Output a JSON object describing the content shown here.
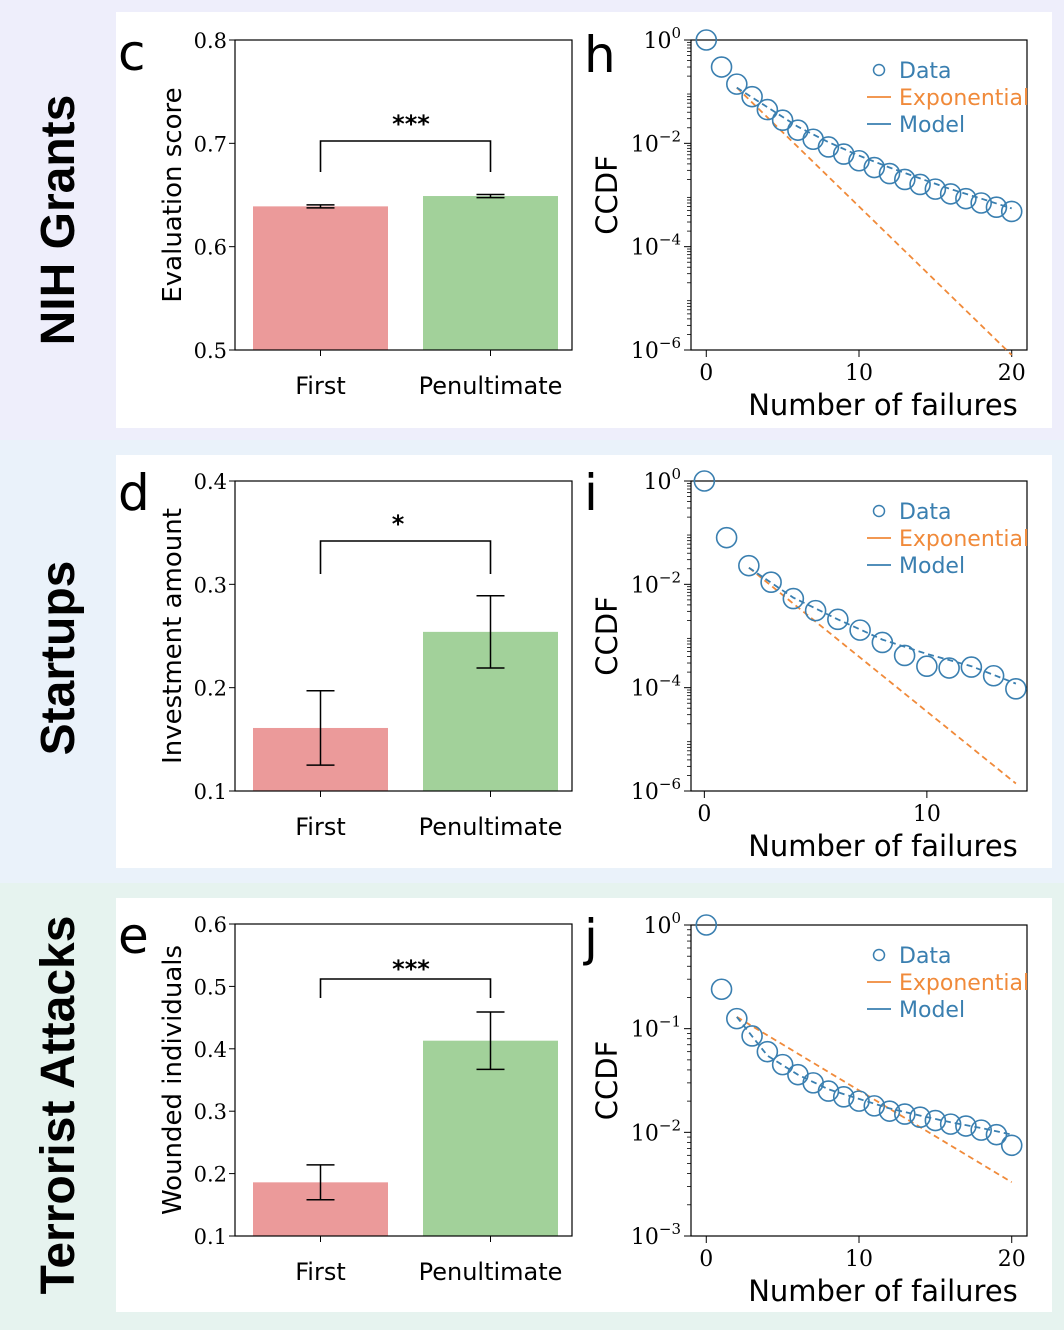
{
  "rows": [
    {
      "label": "NIH Grants",
      "bg": "#eeeefb"
    },
    {
      "label": "Startups",
      "bg": "#eaf2fa"
    },
    {
      "label": "Terrorist Attacks",
      "bg": "#e6f3ef"
    }
  ],
  "colors": {
    "first_bar": "#eb9a9a",
    "penultimate_bar": "#a2d19a",
    "data_marker": "#3a7fb0",
    "exponential_line": "#f08a3a",
    "model_line": "#3a7fb0"
  },
  "chart_data": [
    {
      "panel": "c",
      "type": "bar",
      "categories": [
        "First",
        "Penultimate"
      ],
      "values": [
        0.639,
        0.649
      ],
      "errors": [
        0.0015,
        0.0015
      ],
      "ylabel": "Evaluation score",
      "ylim": [
        0.5,
        0.8
      ],
      "yticks": [
        "0.5",
        "0.6",
        "0.7",
        "0.8"
      ],
      "significance": "***"
    },
    {
      "panel": "h",
      "type": "scatter",
      "xlabel": "Number of failures",
      "ylabel": "CCDF",
      "log_y": true,
      "xlim": [
        -1,
        21
      ],
      "ylim_exp": [
        -6,
        0
      ],
      "xticks": [
        0,
        10,
        20
      ],
      "yticks_exp": [
        0,
        -2,
        -4,
        -6
      ],
      "legend": [
        "Data",
        "Exponential",
        "Model"
      ],
      "legend_position": "top-right",
      "series": [
        {
          "name": "Data",
          "kind": "markers",
          "x": [
            0,
            1,
            2,
            3,
            4,
            5,
            6,
            7,
            8,
            9,
            10,
            11,
            12,
            13,
            14,
            15,
            16,
            17,
            18,
            19,
            20
          ],
          "y": [
            1.0,
            0.3,
            0.14,
            0.08,
            0.045,
            0.028,
            0.018,
            0.012,
            0.0085,
            0.0062,
            0.0046,
            0.0034,
            0.0026,
            0.002,
            0.0016,
            0.0013,
            0.00105,
            0.00085,
            0.0007,
            0.00058,
            0.00048
          ]
        },
        {
          "name": "Exponential",
          "kind": "dashed",
          "x": [
            2,
            20
          ],
          "y": [
            0.12,
            8e-07
          ]
        },
        {
          "name": "Model",
          "kind": "dashed",
          "x": [
            2,
            4,
            6,
            8,
            10,
            12,
            14,
            16,
            18,
            20
          ],
          "y": [
            0.12,
            0.05,
            0.021,
            0.0105,
            0.0058,
            0.0034,
            0.0021,
            0.0013,
            0.00085,
            0.00055
          ]
        }
      ]
    },
    {
      "panel": "d",
      "type": "bar",
      "categories": [
        "First",
        "Penultimate"
      ],
      "values": [
        0.161,
        0.254
      ],
      "errors": [
        0.036,
        0.035
      ],
      "ylabel": "Investment amount",
      "ylim": [
        0.1,
        0.4
      ],
      "yticks": [
        "0.1",
        "0.2",
        "0.3",
        "0.4"
      ],
      "significance": "*"
    },
    {
      "panel": "i",
      "type": "scatter",
      "xlabel": "Number of failures",
      "ylabel": "CCDF",
      "log_y": true,
      "xlim": [
        -0.6,
        14.5
      ],
      "ylim_exp": [
        -6,
        0
      ],
      "xticks": [
        0,
        10
      ],
      "yticks_exp": [
        0,
        -2,
        -4,
        -6
      ],
      "legend": [
        "Data",
        "Exponential",
        "Model"
      ],
      "legend_position": "top-right",
      "series": [
        {
          "name": "Data",
          "kind": "markers",
          "x": [
            0,
            1,
            2,
            3,
            4,
            5,
            6,
            7,
            8,
            9,
            10,
            11,
            12,
            13,
            14
          ],
          "y": [
            1.0,
            0.08,
            0.023,
            0.011,
            0.0053,
            0.0031,
            0.0021,
            0.0013,
            0.00075,
            0.00042,
            0.00026,
            0.00024,
            0.00025,
            0.00017,
            9.5e-05
          ]
        },
        {
          "name": "Exponential",
          "kind": "dashed",
          "x": [
            2,
            14
          ],
          "y": [
            0.021,
            1.4e-06
          ]
        },
        {
          "name": "Model",
          "kind": "dashed",
          "x": [
            2,
            4,
            6,
            8,
            10,
            12,
            14
          ],
          "y": [
            0.021,
            0.0055,
            0.0021,
            0.00085,
            0.00045,
            0.00026,
            0.00012
          ]
        }
      ]
    },
    {
      "panel": "e",
      "type": "bar",
      "categories": [
        "First",
        "Penultimate"
      ],
      "values": [
        0.186,
        0.413
      ],
      "errors": [
        0.028,
        0.046
      ],
      "ylabel": "Wounded individuals",
      "ylim": [
        0.1,
        0.6
      ],
      "yticks": [
        "0.1",
        "0.2",
        "0.3",
        "0.4",
        "0.5",
        "0.6"
      ],
      "significance": "***"
    },
    {
      "panel": "j",
      "type": "scatter",
      "xlabel": "Number of failures",
      "ylabel": "CCDF",
      "log_y": true,
      "xlim": [
        -1,
        21
      ],
      "ylim_exp": [
        -3,
        0
      ],
      "xticks": [
        0,
        10,
        20
      ],
      "yticks_exp": [
        0,
        -1,
        -2,
        -3
      ],
      "legend": [
        "Data",
        "Exponential",
        "Model"
      ],
      "legend_position": "top-right",
      "series": [
        {
          "name": "Data",
          "kind": "markers",
          "x": [
            0,
            1,
            2,
            3,
            4,
            5,
            6,
            7,
            8,
            9,
            10,
            11,
            12,
            13,
            14,
            15,
            16,
            17,
            18,
            19,
            20
          ],
          "y": [
            1.0,
            0.24,
            0.125,
            0.085,
            0.06,
            0.045,
            0.036,
            0.03,
            0.025,
            0.022,
            0.02,
            0.018,
            0.016,
            0.015,
            0.014,
            0.013,
            0.012,
            0.0115,
            0.0105,
            0.0095,
            0.0075
          ]
        },
        {
          "name": "Exponential",
          "kind": "dashed",
          "x": [
            2,
            20
          ],
          "y": [
            0.13,
            0.0033
          ]
        },
        {
          "name": "Model",
          "kind": "dashed",
          "x": [
            2,
            4,
            6,
            8,
            10,
            12,
            14,
            16,
            18,
            20
          ],
          "y": [
            0.13,
            0.055,
            0.036,
            0.026,
            0.021,
            0.017,
            0.0145,
            0.0125,
            0.011,
            0.0095
          ]
        }
      ]
    }
  ]
}
